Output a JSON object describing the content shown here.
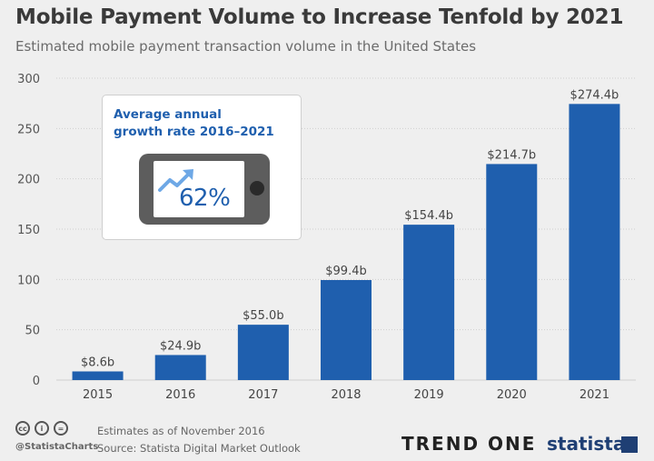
{
  "header": {
    "title": "Mobile Payment Volume to Increase Tenfold by 2021",
    "subtitle": "Estimated mobile payment transaction volume in the United States"
  },
  "callout": {
    "line1": "Average annual",
    "line2": "growth rate 2016–2021",
    "value": "62%",
    "icon": "trend-up-arrow-icon"
  },
  "footer": {
    "handle": "@StatistaCharts",
    "note": "Estimates as of November 2016",
    "source": "Source: Statista Digital Market Outlook",
    "brand_left": "TREND ONE",
    "brand_right": "statista",
    "license_icons": [
      "cc",
      "i",
      "="
    ]
  },
  "chart_data": {
    "type": "bar",
    "categories": [
      "2015",
      "2016",
      "2017",
      "2018",
      "2019",
      "2020",
      "2021"
    ],
    "values": [
      8.6,
      24.9,
      55.0,
      99.4,
      154.4,
      214.7,
      274.4
    ],
    "data_labels": [
      "$8.6b",
      "$24.9b",
      "$55.0b",
      "$99.4b",
      "$154.4b",
      "$214.7b",
      "$274.4b"
    ],
    "yticks": [
      0,
      50,
      100,
      150,
      200,
      250,
      300
    ],
    "ylim": [
      0,
      300
    ],
    "grid": true,
    "bar_color": "#1f5fae"
  }
}
